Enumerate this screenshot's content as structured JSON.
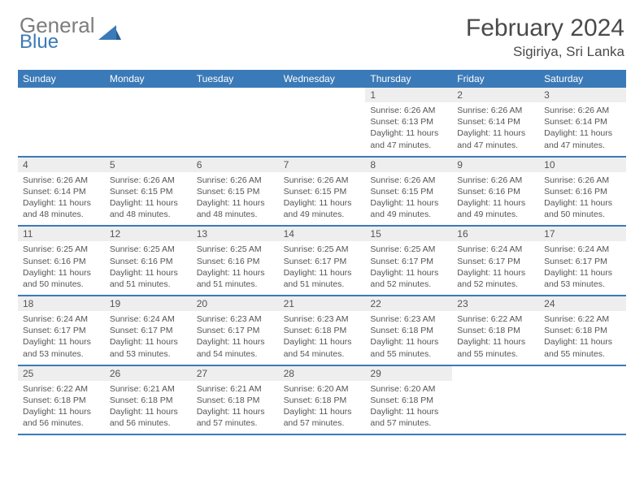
{
  "brand": {
    "general": "General",
    "blue": "Blue"
  },
  "header": {
    "title": "February 2024",
    "location": "Sigiriya, Sri Lanka"
  },
  "colors": {
    "accent": "#3b7ab8",
    "header_text": "#ffffff",
    "daynum_bg": "#eeeeee",
    "text": "#555555"
  },
  "dayNames": [
    "Sunday",
    "Monday",
    "Tuesday",
    "Wednesday",
    "Thursday",
    "Friday",
    "Saturday"
  ],
  "weeks": [
    [
      {
        "day": "",
        "lines": [
          "",
          "",
          "",
          ""
        ]
      },
      {
        "day": "",
        "lines": [
          "",
          "",
          "",
          ""
        ]
      },
      {
        "day": "",
        "lines": [
          "",
          "",
          "",
          ""
        ]
      },
      {
        "day": "",
        "lines": [
          "",
          "",
          "",
          ""
        ]
      },
      {
        "day": "1",
        "lines": [
          "Sunrise: 6:26 AM",
          "Sunset: 6:13 PM",
          "Daylight: 11 hours",
          "and 47 minutes."
        ]
      },
      {
        "day": "2",
        "lines": [
          "Sunrise: 6:26 AM",
          "Sunset: 6:14 PM",
          "Daylight: 11 hours",
          "and 47 minutes."
        ]
      },
      {
        "day": "3",
        "lines": [
          "Sunrise: 6:26 AM",
          "Sunset: 6:14 PM",
          "Daylight: 11 hours",
          "and 47 minutes."
        ]
      }
    ],
    [
      {
        "day": "4",
        "lines": [
          "Sunrise: 6:26 AM",
          "Sunset: 6:14 PM",
          "Daylight: 11 hours",
          "and 48 minutes."
        ]
      },
      {
        "day": "5",
        "lines": [
          "Sunrise: 6:26 AM",
          "Sunset: 6:15 PM",
          "Daylight: 11 hours",
          "and 48 minutes."
        ]
      },
      {
        "day": "6",
        "lines": [
          "Sunrise: 6:26 AM",
          "Sunset: 6:15 PM",
          "Daylight: 11 hours",
          "and 48 minutes."
        ]
      },
      {
        "day": "7",
        "lines": [
          "Sunrise: 6:26 AM",
          "Sunset: 6:15 PM",
          "Daylight: 11 hours",
          "and 49 minutes."
        ]
      },
      {
        "day": "8",
        "lines": [
          "Sunrise: 6:26 AM",
          "Sunset: 6:15 PM",
          "Daylight: 11 hours",
          "and 49 minutes."
        ]
      },
      {
        "day": "9",
        "lines": [
          "Sunrise: 6:26 AM",
          "Sunset: 6:16 PM",
          "Daylight: 11 hours",
          "and 49 minutes."
        ]
      },
      {
        "day": "10",
        "lines": [
          "Sunrise: 6:26 AM",
          "Sunset: 6:16 PM",
          "Daylight: 11 hours",
          "and 50 minutes."
        ]
      }
    ],
    [
      {
        "day": "11",
        "lines": [
          "Sunrise: 6:25 AM",
          "Sunset: 6:16 PM",
          "Daylight: 11 hours",
          "and 50 minutes."
        ]
      },
      {
        "day": "12",
        "lines": [
          "Sunrise: 6:25 AM",
          "Sunset: 6:16 PM",
          "Daylight: 11 hours",
          "and 51 minutes."
        ]
      },
      {
        "day": "13",
        "lines": [
          "Sunrise: 6:25 AM",
          "Sunset: 6:16 PM",
          "Daylight: 11 hours",
          "and 51 minutes."
        ]
      },
      {
        "day": "14",
        "lines": [
          "Sunrise: 6:25 AM",
          "Sunset: 6:17 PM",
          "Daylight: 11 hours",
          "and 51 minutes."
        ]
      },
      {
        "day": "15",
        "lines": [
          "Sunrise: 6:25 AM",
          "Sunset: 6:17 PM",
          "Daylight: 11 hours",
          "and 52 minutes."
        ]
      },
      {
        "day": "16",
        "lines": [
          "Sunrise: 6:24 AM",
          "Sunset: 6:17 PM",
          "Daylight: 11 hours",
          "and 52 minutes."
        ]
      },
      {
        "day": "17",
        "lines": [
          "Sunrise: 6:24 AM",
          "Sunset: 6:17 PM",
          "Daylight: 11 hours",
          "and 53 minutes."
        ]
      }
    ],
    [
      {
        "day": "18",
        "lines": [
          "Sunrise: 6:24 AM",
          "Sunset: 6:17 PM",
          "Daylight: 11 hours",
          "and 53 minutes."
        ]
      },
      {
        "day": "19",
        "lines": [
          "Sunrise: 6:24 AM",
          "Sunset: 6:17 PM",
          "Daylight: 11 hours",
          "and 53 minutes."
        ]
      },
      {
        "day": "20",
        "lines": [
          "Sunrise: 6:23 AM",
          "Sunset: 6:17 PM",
          "Daylight: 11 hours",
          "and 54 minutes."
        ]
      },
      {
        "day": "21",
        "lines": [
          "Sunrise: 6:23 AM",
          "Sunset: 6:18 PM",
          "Daylight: 11 hours",
          "and 54 minutes."
        ]
      },
      {
        "day": "22",
        "lines": [
          "Sunrise: 6:23 AM",
          "Sunset: 6:18 PM",
          "Daylight: 11 hours",
          "and 55 minutes."
        ]
      },
      {
        "day": "23",
        "lines": [
          "Sunrise: 6:22 AM",
          "Sunset: 6:18 PM",
          "Daylight: 11 hours",
          "and 55 minutes."
        ]
      },
      {
        "day": "24",
        "lines": [
          "Sunrise: 6:22 AM",
          "Sunset: 6:18 PM",
          "Daylight: 11 hours",
          "and 55 minutes."
        ]
      }
    ],
    [
      {
        "day": "25",
        "lines": [
          "Sunrise: 6:22 AM",
          "Sunset: 6:18 PM",
          "Daylight: 11 hours",
          "and 56 minutes."
        ]
      },
      {
        "day": "26",
        "lines": [
          "Sunrise: 6:21 AM",
          "Sunset: 6:18 PM",
          "Daylight: 11 hours",
          "and 56 minutes."
        ]
      },
      {
        "day": "27",
        "lines": [
          "Sunrise: 6:21 AM",
          "Sunset: 6:18 PM",
          "Daylight: 11 hours",
          "and 57 minutes."
        ]
      },
      {
        "day": "28",
        "lines": [
          "Sunrise: 6:20 AM",
          "Sunset: 6:18 PM",
          "Daylight: 11 hours",
          "and 57 minutes."
        ]
      },
      {
        "day": "29",
        "lines": [
          "Sunrise: 6:20 AM",
          "Sunset: 6:18 PM",
          "Daylight: 11 hours",
          "and 57 minutes."
        ]
      },
      {
        "day": "",
        "lines": [
          "",
          "",
          "",
          ""
        ]
      },
      {
        "day": "",
        "lines": [
          "",
          "",
          "",
          ""
        ]
      }
    ]
  ]
}
